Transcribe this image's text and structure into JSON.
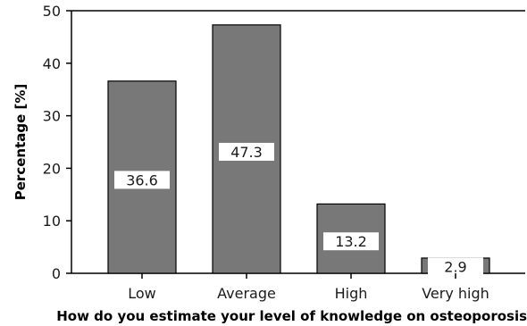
{
  "chart_data": {
    "type": "bar",
    "title": "",
    "xlabel": "How do you estimate your level of knowledge on osteoporosis?",
    "ylabel": "Percentage [%]",
    "categories": [
      "Low",
      "Average",
      "High",
      "Very high"
    ],
    "values": [
      36.6,
      47.3,
      13.2,
      2.9
    ],
    "data_labels": [
      "36.6",
      "47.3",
      "13.2",
      "2.9"
    ],
    "ylim": [
      0,
      50
    ],
    "yticks": [
      0,
      10,
      20,
      30,
      40,
      50
    ],
    "ytick_labels": [
      "0",
      "10",
      "20",
      "30",
      "40",
      "50"
    ],
    "grid": false,
    "legend": "none",
    "colors": {
      "bar_fill": "#787878",
      "bar_stroke": "#000000",
      "label_box": "#ffffff"
    }
  }
}
